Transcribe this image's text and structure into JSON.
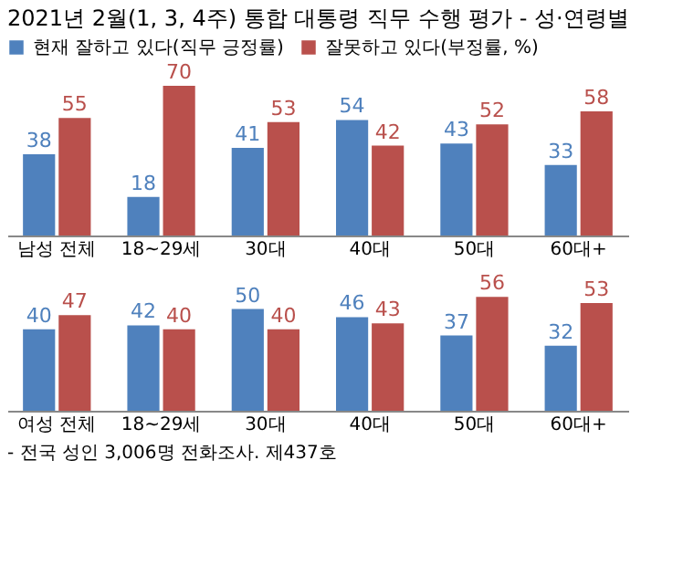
{
  "chart_data": [
    {
      "type": "bar",
      "title": "2021년 2월(1, 3, 4주) 통합 대통령 직무 수행 평가 - 성·연령별",
      "categories": [
        "남성 전체",
        "18~29세",
        "30대",
        "40대",
        "50대",
        "60대+"
      ],
      "series": [
        {
          "name": "현재 잘하고 있다(직무 긍정률)",
          "color": "#4f81bd",
          "values": [
            38,
            18,
            41,
            54,
            43,
            33
          ]
        },
        {
          "name": "잘못하고 있다(부정률, %)",
          "color": "#b9504c",
          "values": [
            55,
            70,
            53,
            42,
            52,
            58
          ]
        }
      ],
      "data_labels": true,
      "legend": "top",
      "grid": false
    },
    {
      "type": "bar",
      "categories": [
        "여성 전체",
        "18~29세",
        "30대",
        "40대",
        "50대",
        "60대+"
      ],
      "series": [
        {
          "color": "#4f81bd",
          "values": [
            40,
            42,
            50,
            46,
            37,
            32
          ]
        },
        {
          "color": "#b9504c",
          "values": [
            47,
            40,
            40,
            43,
            56,
            53
          ]
        }
      ],
      "data_labels": true,
      "grid": false,
      "annotations": [
        "- 전국 성인 3,006명 전화조사. 제437호"
      ]
    }
  ]
}
